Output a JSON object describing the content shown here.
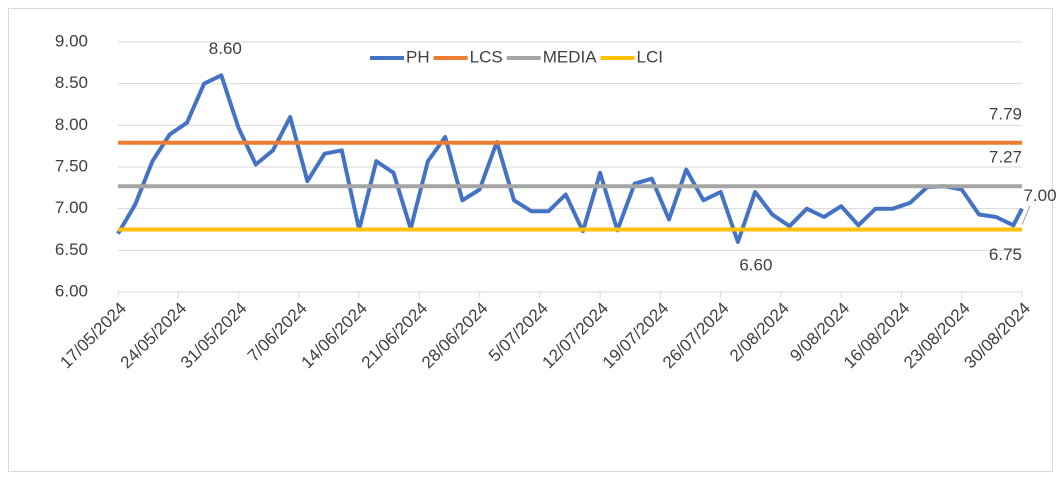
{
  "chart_data": {
    "type": "line",
    "x": [
      "17/05/2024",
      "19/05/2024",
      "21/05/2024",
      "23/05/2024",
      "25/05/2024",
      "27/05/2024",
      "29/05/2024",
      "31/05/2024",
      "2/06/2024",
      "4/06/2024",
      "6/06/2024",
      "8/06/2024",
      "10/06/2024",
      "12/06/2024",
      "14/06/2024",
      "16/06/2024",
      "18/06/2024",
      "20/06/2024",
      "22/06/2024",
      "24/06/2024",
      "26/06/2024",
      "28/06/2024",
      "30/06/2024",
      "2/07/2024",
      "4/07/2024",
      "6/07/2024",
      "8/07/2024",
      "10/07/2024",
      "12/07/2024",
      "14/07/2024",
      "16/07/2024",
      "18/07/2024",
      "20/07/2024",
      "22/07/2024",
      "24/07/2024",
      "26/07/2024",
      "28/07/2024",
      "30/07/2024",
      "1/08/2024",
      "3/08/2024",
      "5/08/2024",
      "7/08/2024",
      "9/08/2024",
      "11/08/2024",
      "13/08/2024",
      "15/08/2024",
      "17/08/2024",
      "19/08/2024",
      "21/08/2024",
      "23/08/2024",
      "25/08/2024",
      "27/08/2024",
      "29/08/2024",
      "30/08/2024"
    ],
    "series": [
      {
        "name": "PH",
        "color": "#4472c4",
        "values": [
          6.7,
          7.05,
          7.57,
          7.89,
          8.03,
          8.5,
          8.6,
          7.97,
          7.53,
          7.7,
          8.1,
          7.33,
          7.66,
          7.7,
          6.75,
          7.57,
          7.43,
          6.76,
          7.57,
          7.86,
          7.1,
          7.23,
          7.8,
          7.1,
          6.97,
          6.97,
          7.17,
          6.73,
          7.43,
          6.74,
          7.3,
          7.36,
          6.87,
          7.47,
          7.1,
          7.2,
          6.6,
          7.2,
          6.93,
          6.79,
          7.0,
          6.9,
          7.03,
          6.8,
          7.0,
          7.0,
          7.07,
          7.26,
          7.27,
          7.23,
          6.93,
          6.9,
          6.8,
          7.0
        ],
        "value_labels": [
          null,
          null,
          null,
          null,
          null,
          null,
          "8.60",
          null,
          null,
          null,
          null,
          null,
          null,
          null,
          null,
          null,
          null,
          null,
          null,
          null,
          null,
          null,
          null,
          null,
          null,
          null,
          null,
          null,
          null,
          null,
          null,
          null,
          null,
          null,
          null,
          null,
          "6.60",
          null,
          null,
          null,
          null,
          null,
          null,
          null,
          null,
          null,
          null,
          null,
          null,
          null,
          null,
          null,
          null,
          "7.00"
        ]
      },
      {
        "name": "LCS",
        "color": "#ed7d31",
        "values": [
          7.79,
          7.79,
          7.79,
          7.79,
          7.79,
          7.79,
          7.79,
          7.79,
          7.79,
          7.79,
          7.79,
          7.79,
          7.79,
          7.79,
          7.79,
          7.79,
          7.79,
          7.79,
          7.79,
          7.79,
          7.79,
          7.79,
          7.79,
          7.79,
          7.79,
          7.79,
          7.79,
          7.79,
          7.79,
          7.79,
          7.79,
          7.79,
          7.79,
          7.79,
          7.79,
          7.79,
          7.79,
          7.79,
          7.79,
          7.79,
          7.79,
          7.79,
          7.79,
          7.79,
          7.79,
          7.79,
          7.79,
          7.79,
          7.79,
          7.79,
          7.79,
          7.79,
          7.79,
          7.79
        ],
        "value_labels": [
          null,
          null,
          null,
          null,
          null,
          null,
          null,
          null,
          null,
          null,
          null,
          null,
          null,
          null,
          null,
          null,
          null,
          null,
          null,
          null,
          null,
          null,
          null,
          null,
          null,
          null,
          null,
          null,
          null,
          null,
          null,
          null,
          null,
          null,
          null,
          null,
          null,
          null,
          null,
          null,
          null,
          null,
          null,
          null,
          null,
          null,
          null,
          null,
          null,
          null,
          null,
          null,
          null,
          "7.79"
        ]
      },
      {
        "name": "MEDIA",
        "color": "#a5a5a5",
        "values": [
          7.27,
          7.27,
          7.27,
          7.27,
          7.27,
          7.27,
          7.27,
          7.27,
          7.27,
          7.27,
          7.27,
          7.27,
          7.27,
          7.27,
          7.27,
          7.27,
          7.27,
          7.27,
          7.27,
          7.27,
          7.27,
          7.27,
          7.27,
          7.27,
          7.27,
          7.27,
          7.27,
          7.27,
          7.27,
          7.27,
          7.27,
          7.27,
          7.27,
          7.27,
          7.27,
          7.27,
          7.27,
          7.27,
          7.27,
          7.27,
          7.27,
          7.27,
          7.27,
          7.27,
          7.27,
          7.27,
          7.27,
          7.27,
          7.27,
          7.27,
          7.27,
          7.27,
          7.27,
          7.27
        ],
        "value_labels": [
          null,
          null,
          null,
          null,
          null,
          null,
          null,
          null,
          null,
          null,
          null,
          null,
          null,
          null,
          null,
          null,
          null,
          null,
          null,
          null,
          null,
          null,
          null,
          null,
          null,
          null,
          null,
          null,
          null,
          null,
          null,
          null,
          null,
          null,
          null,
          null,
          null,
          null,
          null,
          null,
          null,
          null,
          null,
          null,
          null,
          null,
          null,
          null,
          null,
          null,
          null,
          null,
          null,
          "7.27"
        ]
      },
      {
        "name": "LCI",
        "color": "#ffc000",
        "values": [
          6.75,
          6.75,
          6.75,
          6.75,
          6.75,
          6.75,
          6.75,
          6.75,
          6.75,
          6.75,
          6.75,
          6.75,
          6.75,
          6.75,
          6.75,
          6.75,
          6.75,
          6.75,
          6.75,
          6.75,
          6.75,
          6.75,
          6.75,
          6.75,
          6.75,
          6.75,
          6.75,
          6.75,
          6.75,
          6.75,
          6.75,
          6.75,
          6.75,
          6.75,
          6.75,
          6.75,
          6.75,
          6.75,
          6.75,
          6.75,
          6.75,
          6.75,
          6.75,
          6.75,
          6.75,
          6.75,
          6.75,
          6.75,
          6.75,
          6.75,
          6.75,
          6.75,
          6.75,
          6.75
        ],
        "value_labels": [
          null,
          null,
          null,
          null,
          null,
          null,
          null,
          null,
          null,
          null,
          null,
          null,
          null,
          null,
          null,
          null,
          null,
          null,
          null,
          null,
          null,
          null,
          null,
          null,
          null,
          null,
          null,
          null,
          null,
          null,
          null,
          null,
          null,
          null,
          null,
          null,
          null,
          null,
          null,
          null,
          null,
          null,
          null,
          null,
          null,
          null,
          null,
          null,
          null,
          null,
          null,
          null,
          null,
          "6.75"
        ]
      }
    ],
    "xlim": [
      "17/05/2024",
      "30/08/2024"
    ],
    "xticks": [
      "17/05/2024",
      "24/05/2024",
      "31/05/2024",
      "7/06/2024",
      "14/06/2024",
      "21/06/2024",
      "28/06/2024",
      "5/07/2024",
      "12/07/2024",
      "19/07/2024",
      "26/07/2024",
      "2/08/2024",
      "9/08/2024",
      "16/08/2024",
      "23/08/2024",
      "30/08/2024"
    ],
    "ylim": [
      6,
      9
    ],
    "yticks": [
      {
        "value": 6,
        "label": "6.00"
      },
      {
        "value": 6.5,
        "label": "6.50"
      },
      {
        "value": 7,
        "label": "7.00"
      },
      {
        "value": 7.5,
        "label": "7.50"
      },
      {
        "value": 8,
        "label": "8.00"
      },
      {
        "value": 8.5,
        "label": "8.50"
      },
      {
        "value": 9,
        "label": "9.00"
      }
    ],
    "grid": true,
    "legend": "top"
  }
}
